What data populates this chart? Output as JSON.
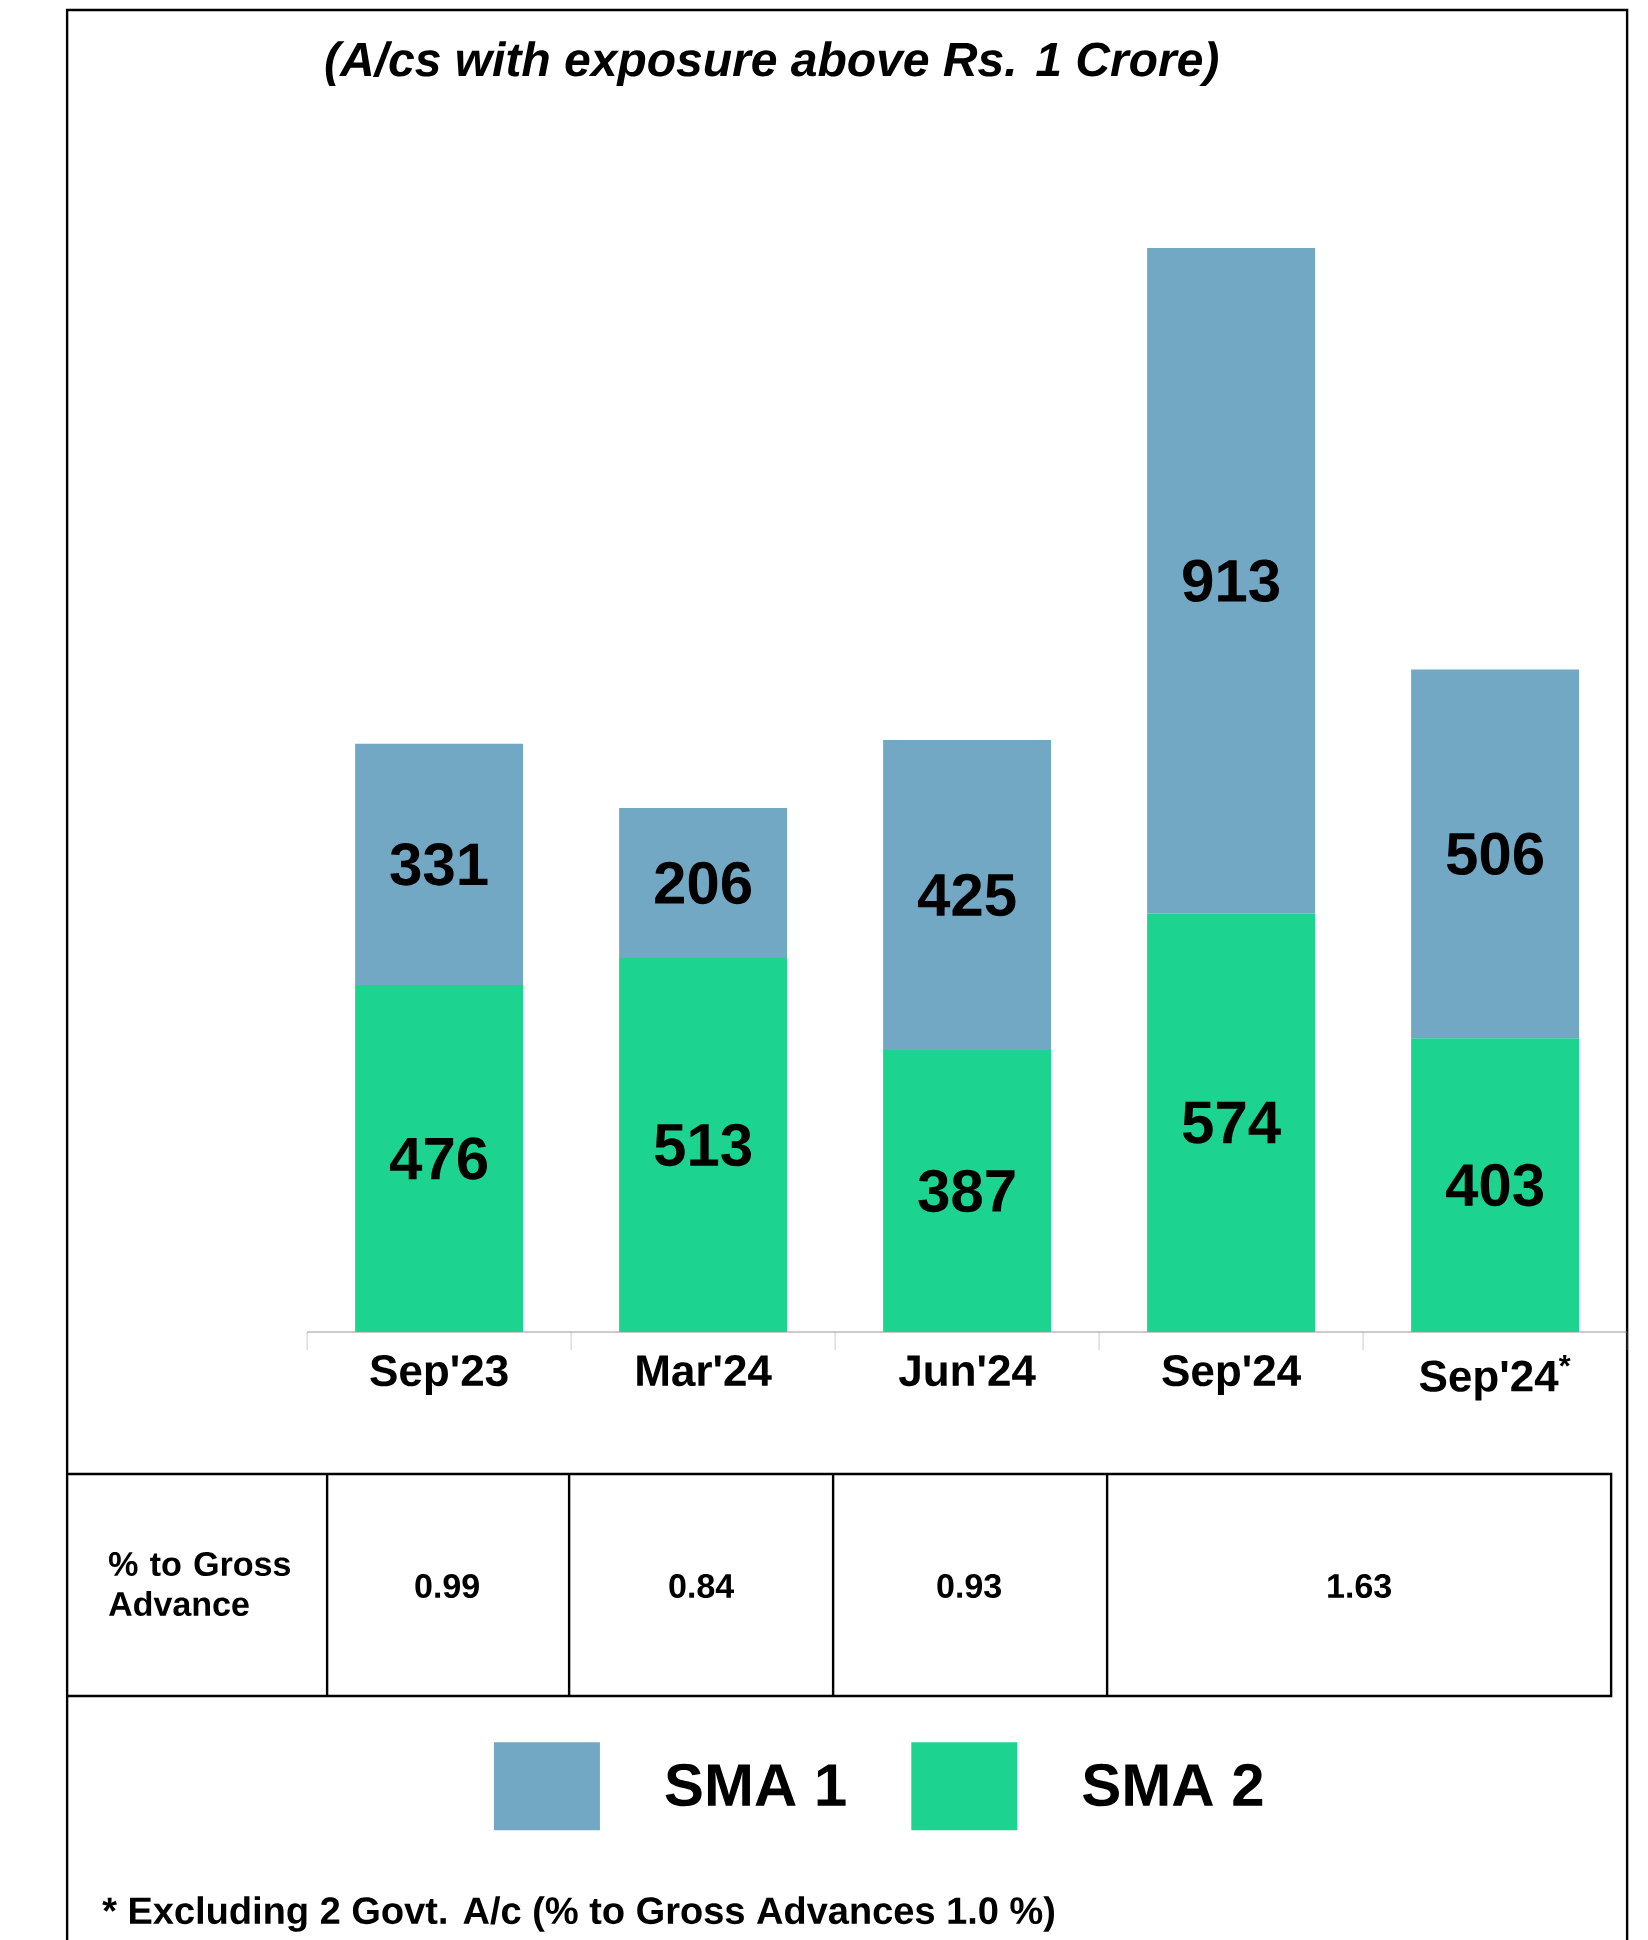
{
  "chart_data": {
    "type": "bar",
    "title": "(A/cs with exposure above Rs. 1 Crore)",
    "stacked": true,
    "legend": "bottom",
    "categories": [
      "Sep'23",
      "Mar'24",
      "Jun'24",
      "Sep'24",
      "Sep'24$^{*}$"
    ],
    "series": [
      {
        "name": "SMA 2",
        "color": "#1cd48f",
        "values": [
          476,
          513,
          387,
          574,
          403
        ],
        "value_labels": [
          "476",
          "513",
          "387",
          "574",
          "403"
        ]
      },
      {
        "name": "SMA 1",
        "color": "#72a8c4",
        "values": [
          331,
          206,
          425,
          913,
          506
        ],
        "value_labels": [
          "331",
          "206",
          "425",
          "913",
          "506"
        ]
      }
    ],
    "ylim": [
      0,
      1487
    ],
    "annotations": [
      "% to Gross Advance",
      "0.99",
      "0.84",
      "0.93",
      "1.63",
      "* Excluding 2 Govt. A/c (% to Gross Advances 1.0 %)"
    ]
  }
}
